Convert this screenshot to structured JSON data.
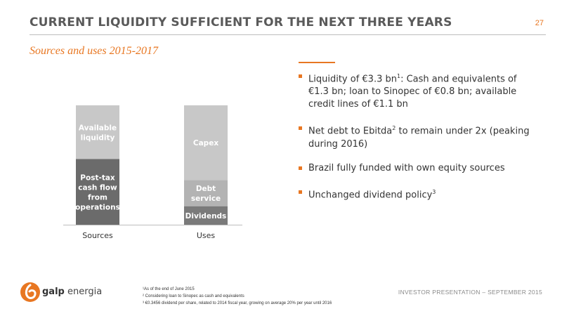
{
  "header": {
    "title": "CURRENT LIQUIDITY SUFFICIENT FOR THE NEXT THREE YEARS",
    "page_number": "27",
    "subtitle": "Sources and uses 2015-2017"
  },
  "chart_data": {
    "type": "bar",
    "stacked": true,
    "categories": [
      "Sources",
      "Uses"
    ],
    "stacks": [
      {
        "category": "Sources",
        "segments": [
          {
            "label": [
              "Post-tax",
              "cash flow",
              "from",
              "operations"
            ],
            "share": 0.55,
            "color": "#6b6b6b"
          },
          {
            "label": [
              "Available",
              "liquidity"
            ],
            "share": 0.45,
            "color": "#c8c8c8"
          }
        ]
      },
      {
        "category": "Uses",
        "segments": [
          {
            "label": [
              "Dividends"
            ],
            "share": 0.155,
            "color": "#7a7a7a"
          },
          {
            "label": [
              "Debt",
              "service"
            ],
            "share": 0.22,
            "color": "#b3b3b3"
          },
          {
            "label": [
              "Capex"
            ],
            "share": 0.625,
            "color": "#c8c8c8"
          }
        ]
      }
    ],
    "axis_color": "#bdbdbd",
    "label_color": "#ffffff"
  },
  "bullets": [
    {
      "parts": [
        [
          "Liquidity of €3.3 bn",
          ""
        ],
        [
          "1",
          "sup"
        ],
        [
          ": Cash and equivalents of €1.3 bn; loan to Sinopec of €0.8 bn; available credit lines of €1.1 bn",
          ""
        ]
      ]
    },
    {
      "parts": [
        [
          "Net debt to Ebitda",
          ""
        ],
        [
          "2",
          "sup"
        ],
        [
          " to remain under 2x (peaking during 2016)",
          ""
        ]
      ]
    },
    {
      "parts": [
        [
          "Brazil fully funded with own equity sources",
          ""
        ]
      ]
    },
    {
      "parts": [
        [
          "Unchanged dividend policy",
          ""
        ],
        [
          "3",
          "sup"
        ]
      ]
    }
  ],
  "footer": {
    "logo_word": "galp",
    "logo_word2": "energia",
    "footnotes": [
      "¹As of the end of June 2015",
      "² Considering loan to Sinopec as cash and equivalents",
      "³ €0.3456 dividend per share, related to 2014 fiscal year, growing on average 20% per year until 2016"
    ],
    "right_text": "INVESTOR PRESENTATION – SEPTEMBER 2015"
  },
  "colors": {
    "accent": "#e87722",
    "title": "#5a5a5a"
  }
}
